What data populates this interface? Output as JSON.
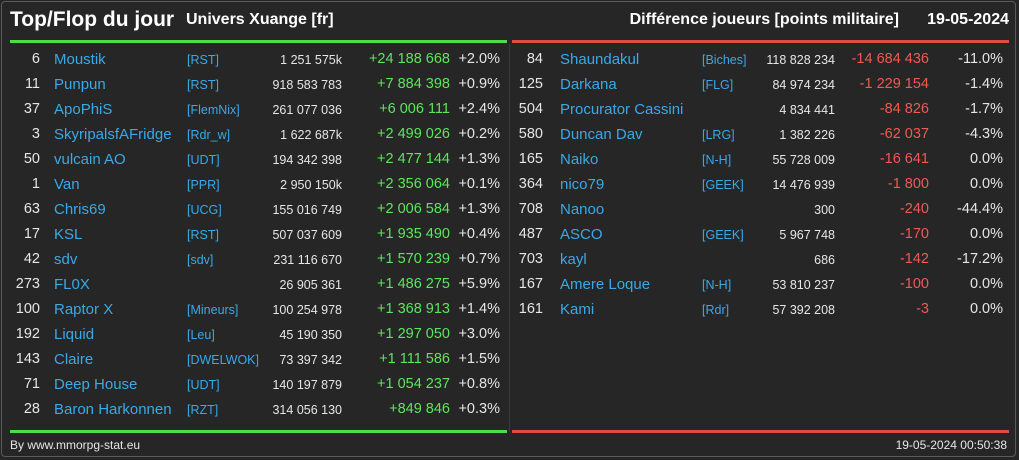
{
  "header": {
    "title": "Top/Flop du jour",
    "universe": "Univers Xuange [fr]",
    "subtitle": "Différence joueurs [points militaire]",
    "date": "19-05-2024"
  },
  "colors": {
    "positive": "#5ce65c",
    "negative": "#f05a52",
    "link": "#39a9e8"
  },
  "top": [
    {
      "rank": "6",
      "name": "Moustik",
      "alliance": "[RST]",
      "points": "1 251 575k",
      "diff": "+24 188 668",
      "pct": "+2.0%"
    },
    {
      "rank": "11",
      "name": "Punpun",
      "alliance": "[RST]",
      "points": "918 583 783",
      "diff": "+7 884 398",
      "pct": "+0.9%"
    },
    {
      "rank": "37",
      "name": "ApoPhiS",
      "alliance": "[FlemNix]",
      "points": "261 077 036",
      "diff": "+6 006 111",
      "pct": "+2.4%"
    },
    {
      "rank": "3",
      "name": "SkyripalsfAFridge",
      "alliance": "[Rdr_w]",
      "points": "1 622 687k",
      "diff": "+2 499 026",
      "pct": "+0.2%"
    },
    {
      "rank": "50",
      "name": "vulcain AO",
      "alliance": "[UDT]",
      "points": "194 342 398",
      "diff": "+2 477 144",
      "pct": "+1.3%"
    },
    {
      "rank": "1",
      "name": "Van",
      "alliance": "[PPR]",
      "points": "2 950 150k",
      "diff": "+2 356 064",
      "pct": "+0.1%"
    },
    {
      "rank": "63",
      "name": "Chris69",
      "alliance": "[UCG]",
      "points": "155 016 749",
      "diff": "+2 006 584",
      "pct": "+1.3%"
    },
    {
      "rank": "17",
      "name": "KSL",
      "alliance": "[RST]",
      "points": "507 037 609",
      "diff": "+1 935 490",
      "pct": "+0.4%"
    },
    {
      "rank": "42",
      "name": "sdv",
      "alliance": "[sdv]",
      "points": "231 116 670",
      "diff": "+1 570 239",
      "pct": "+0.7%"
    },
    {
      "rank": "273",
      "name": "FL0X",
      "alliance": "",
      "points": "26 905 361",
      "diff": "+1 486 275",
      "pct": "+5.9%"
    },
    {
      "rank": "100",
      "name": "Raptor X",
      "alliance": "[Mineurs]",
      "points": "100 254 978",
      "diff": "+1 368 913",
      "pct": "+1.4%"
    },
    {
      "rank": "192",
      "name": "Liquid",
      "alliance": "[Leu]",
      "points": "45 190 350",
      "diff": "+1 297 050",
      "pct": "+3.0%"
    },
    {
      "rank": "143",
      "name": "Claire",
      "alliance": "[DWELWOK]",
      "points": "73 397 342",
      "diff": "+1 111 586",
      "pct": "+1.5%"
    },
    {
      "rank": "71",
      "name": "Deep House",
      "alliance": "[UDT]",
      "points": "140 197 879",
      "diff": "+1 054 237",
      "pct": "+0.8%"
    },
    {
      "rank": "28",
      "name": "Baron Harkonnen",
      "alliance": "[RZT]",
      "points": "314 056 130",
      "diff": "+849 846",
      "pct": "+0.3%"
    }
  ],
  "flop": [
    {
      "rank": "84",
      "name": "Shaundakul",
      "alliance": "[Biches]",
      "points": "118 828 234",
      "diff": "-14 684 436",
      "pct": "-11.0%"
    },
    {
      "rank": "125",
      "name": "Darkana",
      "alliance": "[FLG]",
      "points": "84 974 234",
      "diff": "-1 229 154",
      "pct": "-1.4%"
    },
    {
      "rank": "504",
      "name": "Procurator Cassini",
      "alliance": "",
      "points": "4 834 441",
      "diff": "-84 826",
      "pct": "-1.7%"
    },
    {
      "rank": "580",
      "name": "Duncan Dav",
      "alliance": "[LRG]",
      "points": "1 382 226",
      "diff": "-62 037",
      "pct": "-4.3%"
    },
    {
      "rank": "165",
      "name": "Naiko",
      "alliance": "[N-H]",
      "points": "55 728 009",
      "diff": "-16 641",
      "pct": "0.0%"
    },
    {
      "rank": "364",
      "name": "nico79",
      "alliance": "[GEEK]",
      "points": "14 476 939",
      "diff": "-1 800",
      "pct": "0.0%"
    },
    {
      "rank": "708",
      "name": "Nanoo",
      "alliance": "",
      "points": "300",
      "diff": "-240",
      "pct": "-44.4%"
    },
    {
      "rank": "487",
      "name": "ASCO",
      "alliance": "[GEEK]",
      "points": "5 967 748",
      "diff": "-170",
      "pct": "0.0%"
    },
    {
      "rank": "703",
      "name": "kayl",
      "alliance": "",
      "points": "686",
      "diff": "-142",
      "pct": "-17.2%"
    },
    {
      "rank": "167",
      "name": "Amere Loque",
      "alliance": "[N-H]",
      "points": "53 810 237",
      "diff": "-100",
      "pct": "0.0%"
    },
    {
      "rank": "161",
      "name": "Kami",
      "alliance": "[Rdr]",
      "points": "57 392 208",
      "diff": "-3",
      "pct": "0.0%"
    }
  ],
  "footer": {
    "credit": "By www.mmorpg-stat.eu",
    "timestamp": "19-05-2024 00:50:38"
  }
}
